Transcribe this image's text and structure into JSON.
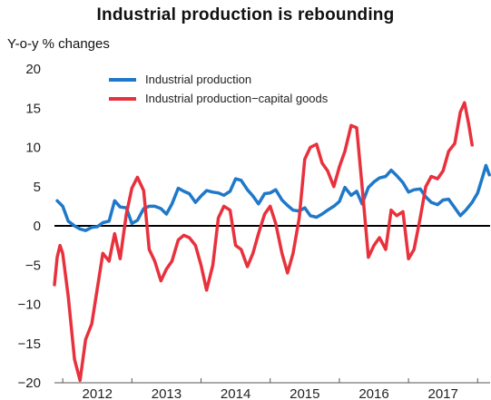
{
  "chart_data": {
    "type": "line",
    "title": "Industrial production is rebounding",
    "ylabel": "Y-o-y % changes",
    "xlabel": "",
    "ylim": [
      -20,
      20
    ],
    "y_ticks": [
      20,
      15,
      10,
      5,
      0,
      -5,
      -10,
      -15,
      -20
    ],
    "x_ticks": [
      "2012",
      "2013",
      "2014",
      "2015",
      "2016",
      "2017"
    ],
    "xlim": [
      2011.38,
      2017.68
    ],
    "grid": false,
    "zero_line": true,
    "legend": {
      "placement": "top-left"
    },
    "colors": {
      "industrial_production": "#1f78c8",
      "capital_goods": "#e8313c",
      "axis": "#000000"
    },
    "series": [
      {
        "name": "Industrial production",
        "key": "industrial_production",
        "points": [
          [
            2011.42,
            3.2
          ],
          [
            2011.5,
            2.5
          ],
          [
            2011.58,
            0.6
          ],
          [
            2011.67,
            0.0
          ],
          [
            2011.75,
            -0.4
          ],
          [
            2011.83,
            -0.6
          ],
          [
            2011.92,
            -0.2
          ],
          [
            2012.0,
            -0.1
          ],
          [
            2012.08,
            0.4
          ],
          [
            2012.17,
            0.6
          ],
          [
            2012.25,
            3.2
          ],
          [
            2012.33,
            2.4
          ],
          [
            2012.42,
            2.3
          ],
          [
            2012.5,
            0.3
          ],
          [
            2012.58,
            0.7
          ],
          [
            2012.67,
            2.2
          ],
          [
            2012.75,
            2.5
          ],
          [
            2012.83,
            2.5
          ],
          [
            2012.92,
            2.2
          ],
          [
            2013.0,
            1.5
          ],
          [
            2013.08,
            2.8
          ],
          [
            2013.17,
            4.8
          ],
          [
            2013.25,
            4.4
          ],
          [
            2013.33,
            4.1
          ],
          [
            2013.42,
            3.0
          ],
          [
            2013.5,
            3.8
          ],
          [
            2013.58,
            4.5
          ],
          [
            2013.67,
            4.3
          ],
          [
            2013.75,
            4.2
          ],
          [
            2013.83,
            3.9
          ],
          [
            2013.92,
            4.4
          ],
          [
            2014.0,
            6.0
          ],
          [
            2014.08,
            5.8
          ],
          [
            2014.17,
            4.6
          ],
          [
            2014.25,
            3.8
          ],
          [
            2014.33,
            2.8
          ],
          [
            2014.42,
            4.1
          ],
          [
            2014.5,
            4.2
          ],
          [
            2014.58,
            4.6
          ],
          [
            2014.67,
            3.3
          ],
          [
            2014.75,
            2.6
          ],
          [
            2014.83,
            2.0
          ],
          [
            2014.92,
            1.9
          ],
          [
            2015.0,
            2.3
          ],
          [
            2015.08,
            1.3
          ],
          [
            2015.17,
            1.1
          ],
          [
            2015.25,
            1.5
          ],
          [
            2015.33,
            2.0
          ],
          [
            2015.42,
            2.5
          ],
          [
            2015.5,
            3.1
          ],
          [
            2015.58,
            4.9
          ],
          [
            2015.67,
            3.9
          ],
          [
            2015.75,
            4.4
          ],
          [
            2015.83,
            2.8
          ],
          [
            2015.92,
            4.9
          ],
          [
            2016.0,
            5.6
          ],
          [
            2016.08,
            6.1
          ],
          [
            2016.17,
            6.3
          ],
          [
            2016.25,
            7.1
          ],
          [
            2016.33,
            6.4
          ],
          [
            2016.42,
            5.5
          ],
          [
            2016.5,
            4.3
          ],
          [
            2016.58,
            4.6
          ],
          [
            2016.67,
            4.7
          ],
          [
            2016.75,
            3.7
          ],
          [
            2016.83,
            3.0
          ],
          [
            2016.92,
            2.7
          ],
          [
            2017.0,
            3.3
          ],
          [
            2017.08,
            3.4
          ],
          [
            2017.17,
            2.3
          ],
          [
            2017.25,
            1.3
          ],
          [
            2017.33,
            2.0
          ],
          [
            2017.42,
            3.0
          ],
          [
            2017.5,
            4.2
          ],
          [
            2017.58,
            6.5
          ],
          [
            2017.62,
            7.7
          ],
          [
            2017.67,
            6.5
          ]
        ]
      },
      {
        "name": "Industrial production−capital goods",
        "key": "capital_goods",
        "points": [
          [
            2011.38,
            -7.5
          ],
          [
            2011.42,
            -4.0
          ],
          [
            2011.46,
            -2.5
          ],
          [
            2011.5,
            -3.5
          ],
          [
            2011.58,
            -9.0
          ],
          [
            2011.67,
            -17.0
          ],
          [
            2011.75,
            -19.7
          ],
          [
            2011.83,
            -14.5
          ],
          [
            2011.92,
            -12.5
          ],
          [
            2012.0,
            -8.0
          ],
          [
            2012.08,
            -3.5
          ],
          [
            2012.17,
            -4.5
          ],
          [
            2012.25,
            -1.0
          ],
          [
            2012.33,
            -4.2
          ],
          [
            2012.42,
            1.5
          ],
          [
            2012.5,
            4.8
          ],
          [
            2012.58,
            6.2
          ],
          [
            2012.67,
            4.5
          ],
          [
            2012.75,
            -3.0
          ],
          [
            2012.83,
            -4.5
          ],
          [
            2012.92,
            -7.0
          ],
          [
            2013.0,
            -5.5
          ],
          [
            2013.08,
            -4.5
          ],
          [
            2013.17,
            -1.8
          ],
          [
            2013.25,
            -1.2
          ],
          [
            2013.33,
            -1.5
          ],
          [
            2013.42,
            -2.5
          ],
          [
            2013.5,
            -5.0
          ],
          [
            2013.58,
            -8.2
          ],
          [
            2013.67,
            -5.0
          ],
          [
            2013.75,
            1.0
          ],
          [
            2013.83,
            2.5
          ],
          [
            2013.92,
            2.0
          ],
          [
            2014.0,
            -2.5
          ],
          [
            2014.08,
            -3.0
          ],
          [
            2014.17,
            -5.2
          ],
          [
            2014.25,
            -3.5
          ],
          [
            2014.33,
            -1.0
          ],
          [
            2014.42,
            1.5
          ],
          [
            2014.5,
            2.5
          ],
          [
            2014.58,
            0.3
          ],
          [
            2014.67,
            -3.5
          ],
          [
            2014.75,
            -6.0
          ],
          [
            2014.83,
            -3.5
          ],
          [
            2014.92,
            1.0
          ],
          [
            2015.0,
            8.5
          ],
          [
            2015.08,
            10.0
          ],
          [
            2015.17,
            10.4
          ],
          [
            2015.25,
            8.0
          ],
          [
            2015.33,
            7.0
          ],
          [
            2015.42,
            5.0
          ],
          [
            2015.5,
            7.5
          ],
          [
            2015.58,
            9.5
          ],
          [
            2015.67,
            12.8
          ],
          [
            2015.75,
            12.5
          ],
          [
            2015.83,
            5.0
          ],
          [
            2015.92,
            -4.0
          ],
          [
            2016.0,
            -2.5
          ],
          [
            2016.08,
            -1.5
          ],
          [
            2016.17,
            -3.0
          ],
          [
            2016.25,
            2.0
          ],
          [
            2016.33,
            1.3
          ],
          [
            2016.42,
            1.8
          ],
          [
            2016.5,
            -4.2
          ],
          [
            2016.58,
            -3.0
          ],
          [
            2016.67,
            1.0
          ],
          [
            2016.75,
            5.0
          ],
          [
            2016.83,
            6.3
          ],
          [
            2016.92,
            6.0
          ],
          [
            2017.0,
            7.0
          ],
          [
            2017.08,
            9.5
          ],
          [
            2017.17,
            10.5
          ],
          [
            2017.25,
            14.5
          ],
          [
            2017.31,
            15.7
          ],
          [
            2017.37,
            13.0
          ],
          [
            2017.42,
            10.3
          ]
        ]
      }
    ]
  }
}
